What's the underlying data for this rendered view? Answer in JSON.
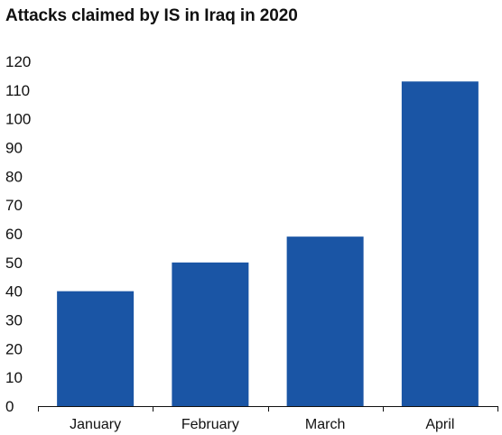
{
  "chart_data": {
    "type": "bar",
    "title": "Attacks claimed by IS in Iraq in 2020",
    "categories": [
      "January",
      "February",
      "March",
      "April"
    ],
    "values": [
      40,
      50,
      59,
      113
    ],
    "ylim": [
      0,
      120
    ],
    "yticks": [
      0,
      10,
      20,
      30,
      40,
      50,
      60,
      70,
      80,
      90,
      100,
      110,
      120
    ],
    "grid": false,
    "bar_color": "#1a55a5",
    "axis_color": "#111111"
  }
}
